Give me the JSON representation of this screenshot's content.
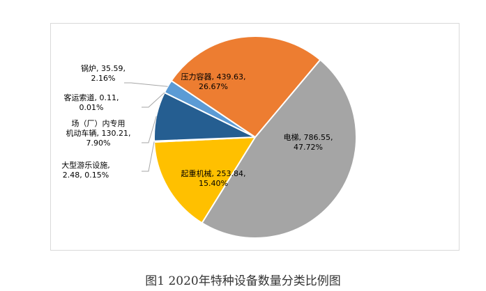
{
  "caption": "图1 2020年特种设备数量分类比例图",
  "chart_data": {
    "type": "pie",
    "slices": [
      {
        "name": "电梯",
        "value": 786.55,
        "percent": "47.72%",
        "value_text": "786.55",
        "color": "#a5a5a5",
        "label_lines": [
          "电梯, 786.55,",
          "47.72%"
        ]
      },
      {
        "name": "起重机械",
        "value": 253.84,
        "percent": "15.40%",
        "value_text": "253.84",
        "color": "#ffc000",
        "label_lines": [
          "起重机械, 253.84,",
          "15.40%"
        ]
      },
      {
        "name": "大型游乐设施",
        "value": 2.48,
        "percent": "0.15%",
        "value_text": "2.48",
        "color": "#70ad47",
        "label_lines": [
          "大型游乐设施,",
          "2.48, 0.15%"
        ]
      },
      {
        "name": "场（厂）内专用机动车辆",
        "value": 130.21,
        "percent": "7.90%",
        "value_text": "130.21",
        "color": "#255e91",
        "label_lines": [
          "场（厂）内专用",
          "机动车辆, 130.21,",
          "7.90%"
        ]
      },
      {
        "name": "客运索道",
        "value": 0.11,
        "percent": "0.01%",
        "value_text": "0.11",
        "color": "#264478",
        "label_lines": [
          "客运索道, 0.11,",
          "0.01%"
        ]
      },
      {
        "name": "锅炉",
        "value": 35.59,
        "percent": "2.16%",
        "value_text": "35.59",
        "color": "#5b9bd5",
        "label_lines": [
          "锅炉, 35.59,",
          "2.16%"
        ]
      },
      {
        "name": "压力容器",
        "value": 439.63,
        "percent": "26.67%",
        "value_text": "439.63",
        "color": "#ed7d31",
        "label_lines": [
          "压力容器, 439.63,",
          "26.67%"
        ]
      }
    ]
  }
}
